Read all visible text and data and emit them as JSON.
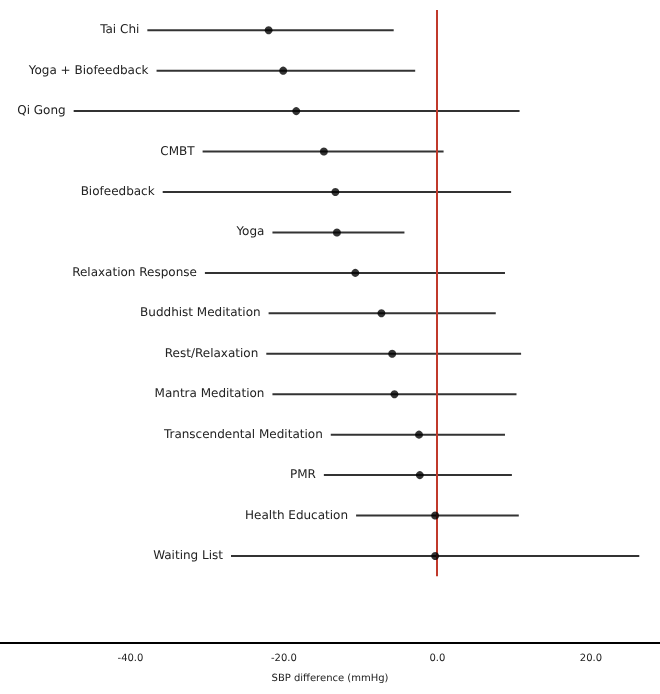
{
  "chart_data": {
    "type": "scatter",
    "orientation": "horizontal",
    "xlabel": "SBP difference (mmHg)",
    "categories": [
      "Tai Chi",
      "Yoga + Biofeedback",
      "Qi Gong",
      "CMBT",
      "Biofeedback",
      "Yoga",
      "Relaxation Response",
      "Buddhist Meditation",
      "Rest/Relaxation",
      "Mantra Meditation",
      "Transcendental Meditation",
      "PMR",
      "Health Education",
      "Waiting List"
    ],
    "values": [
      -22.0,
      -20.1,
      -18.4,
      -14.8,
      -13.3,
      -13.1,
      -10.7,
      -7.3,
      -5.9,
      -5.6,
      -2.4,
      -2.3,
      -0.3,
      -0.3
    ],
    "errors": [
      [
        -37.8,
        -5.7
      ],
      [
        -36.6,
        -2.9
      ],
      [
        -47.4,
        10.7
      ],
      [
        -30.6,
        0.8
      ],
      [
        -35.8,
        9.6
      ],
      [
        -21.5,
        -4.3
      ],
      [
        -30.3,
        8.8
      ],
      [
        -22.0,
        7.6
      ],
      [
        -22.3,
        10.9
      ],
      [
        -21.5,
        10.3
      ],
      [
        -13.9,
        8.8
      ],
      [
        -14.8,
        9.7
      ],
      [
        -10.6,
        10.6
      ],
      [
        -26.9,
        26.3
      ]
    ],
    "color": "#000000",
    "xlim": [
      -57,
      29
    ],
    "xticks": [
      {
        "value": -40,
        "label": "-40.0"
      },
      {
        "value": -20,
        "label": "-20.0"
      },
      {
        "value": 0,
        "label": "0.0"
      },
      {
        "value": 20,
        "label": "20.0"
      }
    ],
    "ref_lines": [
      {
        "axis": "x",
        "value": 0,
        "label": null,
        "color": "#c0392b"
      }
    ]
  }
}
